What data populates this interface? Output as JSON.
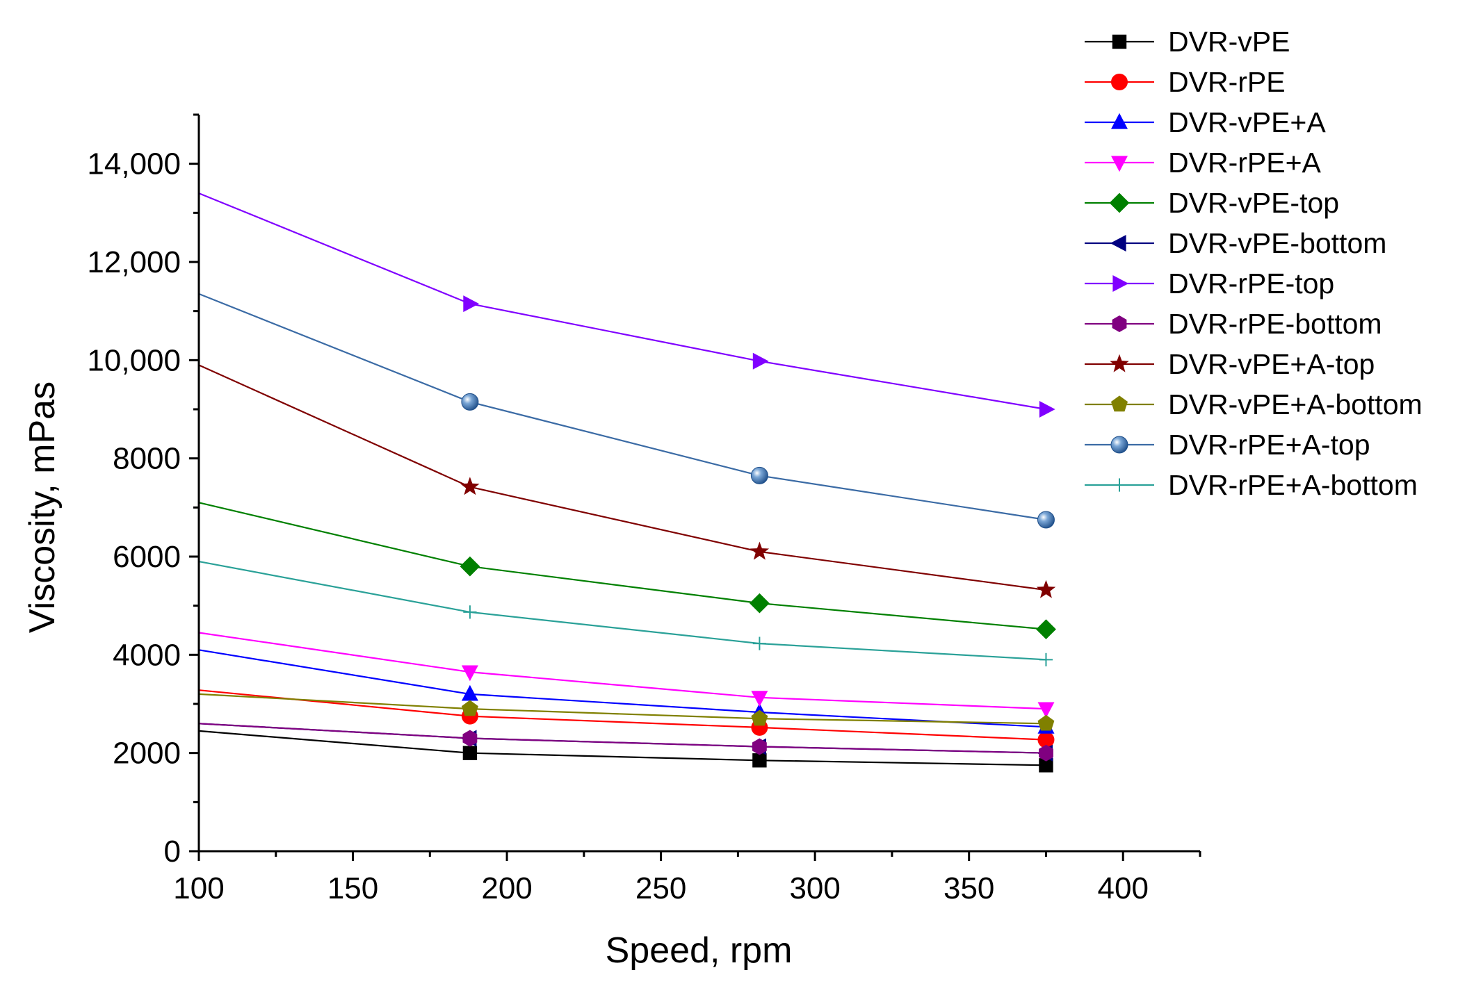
{
  "chart_data": {
    "type": "line",
    "title": "",
    "xlabel": "Speed, rpm",
    "ylabel": "Viscosity, mPas",
    "xlim": [
      100,
      425
    ],
    "ylim": [
      0,
      15000
    ],
    "x_ticks": [
      100,
      150,
      200,
      250,
      300,
      350,
      400
    ],
    "x_tick_labels": [
      "100",
      "150",
      "200",
      "250",
      "300",
      "350",
      "400"
    ],
    "y_ticks": [
      0,
      2000,
      4000,
      6000,
      8000,
      10000,
      12000,
      14000
    ],
    "y_tick_labels": [
      "0",
      "2000",
      "4000",
      "6000",
      "8000",
      "10,000",
      "12,000",
      "14,000"
    ],
    "x": [
      100,
      188,
      282,
      375
    ],
    "grid": false,
    "legend_position": "top-right (outside plot)",
    "series": [
      {
        "name": "DVR-vPE",
        "color": "#000000",
        "marker": "square",
        "values": [
          2450,
          2000,
          1850,
          1750
        ]
      },
      {
        "name": "DVR-rPE",
        "color": "#ff0000",
        "marker": "circle",
        "values": [
          3280,
          2750,
          2520,
          2270
        ]
      },
      {
        "name": "DVR-vPE+A",
        "color": "#0000ff",
        "marker": "triangle-up",
        "values": [
          4100,
          3200,
          2830,
          2530
        ]
      },
      {
        "name": "DVR-rPE+A",
        "color": "#ff00ff",
        "marker": "triangle-down",
        "values": [
          4450,
          3650,
          3130,
          2900
        ]
      },
      {
        "name": "DVR-vPE-top",
        "color": "#008000",
        "marker": "diamond",
        "values": [
          7100,
          5800,
          5050,
          4520
        ]
      },
      {
        "name": "DVR-vPE-bottom",
        "color": "#000080",
        "marker": "triangle-left",
        "values": [
          2600,
          2300,
          2130,
          2000
        ]
      },
      {
        "name": "DVR-rPE-top",
        "color": "#8000ff",
        "marker": "triangle-right",
        "values": [
          13400,
          11150,
          9980,
          9000
        ]
      },
      {
        "name": "DVR-rPE-bottom",
        "color": "#800080",
        "marker": "hexagon",
        "values": [
          2600,
          2300,
          2130,
          2000
        ]
      },
      {
        "name": "DVR-vPE+A-top",
        "color": "#800000",
        "marker": "star",
        "values": [
          9900,
          7420,
          6100,
          5320
        ]
      },
      {
        "name": "DVR-vPE+A-bottom",
        "color": "#808000",
        "marker": "pentagon",
        "values": [
          3200,
          2900,
          2700,
          2600
        ]
      },
      {
        "name": "DVR-rPE+A-top",
        "color": "#3b6ba5",
        "marker": "sphere",
        "values": [
          11350,
          9150,
          7650,
          6750
        ]
      },
      {
        "name": "DVR-rPE+A-bottom",
        "color": "#2aa198",
        "marker": "plus",
        "values": [
          5900,
          4870,
          4230,
          3900
        ]
      }
    ]
  }
}
